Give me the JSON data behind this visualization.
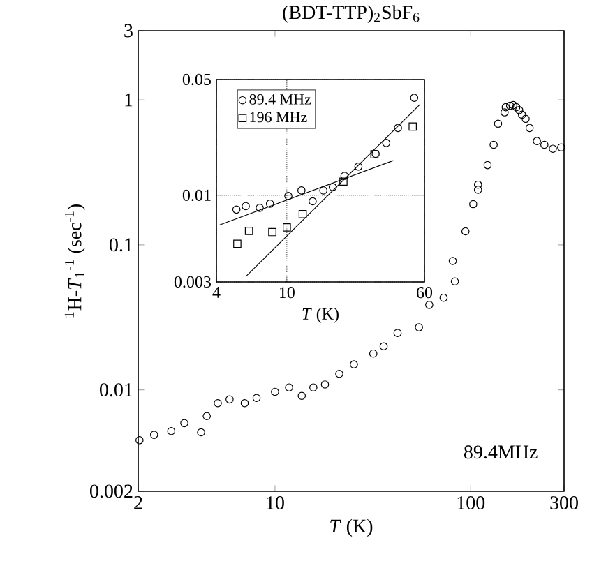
{
  "chart_data": [
    {
      "type": "scatter",
      "title": "(BDT-TTP)$_{2}$SbF$_{6}$",
      "xlabel": "*T* (K)",
      "ylabel": "$^{1}$H-*T*$_{1}$$^{-1}$ (sec$^{-1}$)",
      "log": "xy",
      "marker": "circle",
      "xlim": [
        2,
        300
      ],
      "ylim": [
        0.002,
        3
      ],
      "xticks": [
        2,
        10,
        100,
        300
      ],
      "yticks": [
        0.002,
        0.01,
        0.1,
        1,
        3
      ],
      "annotations": [
        "89.4MHz"
      ],
      "series": [
        {
          "color": "#000000",
          "x": [
            2.03,
            2.41,
            2.95,
            3.44,
            4.19,
            4.48,
            5.1,
            5.86,
            7.0,
            8.05,
            10,
            11.8,
            13.7,
            15.7,
            18,
            21.3,
            25.3,
            31.8,
            35.9,
            42.3,
            54.4,
            61.4,
            72.7,
            83,
            81,
            94,
            103,
            109,
            109,
            122,
            131,
            138,
            149,
            151,
            159,
            165,
            171,
            177,
            183,
            191,
            200,
            218,
            238,
            263,
            290
          ],
          "values": [
            0.0045,
            0.0049,
            0.0052,
            0.0059,
            0.0051,
            0.0066,
            0.0081,
            0.0086,
            0.0081,
            0.0088,
            0.0097,
            0.0104,
            0.0091,
            0.0104,
            0.0109,
            0.0129,
            0.015,
            0.0178,
            0.02,
            0.0247,
            0.027,
            0.0386,
            0.0432,
            0.056,
            0.0775,
            0.124,
            0.191,
            0.24,
            0.26,
            0.355,
            0.49,
            0.685,
            0.82,
            0.89,
            0.91,
            0.92,
            0.89,
            0.85,
            0.79,
            0.74,
            0.64,
            0.52,
            0.49,
            0.46,
            0.47
          ]
        }
      ]
    },
    {
      "type": "scatter",
      "xlabel": "*T* (K)",
      "log": "xy",
      "grid": true,
      "legend": "top left",
      "xlim": [
        4,
        60
      ],
      "ylim": [
        0.003,
        0.05
      ],
      "xticks": [
        4,
        10,
        60
      ],
      "yticks": [
        0.003,
        0.01,
        0.05
      ],
      "series": [
        {
          "name": "89.4 MHz",
          "color": "#000000",
          "marker": "circle",
          "x": [
            5.19,
            5.86,
            7.03,
            8.03,
            10.2,
            12.1,
            14.0,
            16.1,
            18.2,
            21.2,
            25.4,
            31.8,
            36.5,
            42.5,
            52.5
          ],
          "values": [
            0.0082,
            0.0086,
            0.0084,
            0.0089,
            0.0099,
            0.0107,
            0.0092,
            0.0107,
            0.0112,
            0.0131,
            0.0149,
            0.0178,
            0.0207,
            0.0255,
            0.0388
          ]
        },
        {
          "name": "196 MHz",
          "color": "#000000",
          "marker": "square",
          "x": [
            5.25,
            6.11,
            8.28,
            10,
            12.3,
            20.9,
            31.3,
            51.5
          ],
          "values": [
            0.0051,
            0.0061,
            0.006,
            0.0064,
            0.0077,
            0.0121,
            0.0177,
            0.026
          ]
        },
        {
          "type": "line",
          "color": "#000000",
          "x": [
            4.13,
            40
          ],
          "values": [
            0.0066,
            0.0162
          ]
        },
        {
          "type": "line",
          "color": "#000000",
          "x": [
            5.86,
            56.5
          ],
          "values": [
            0.00323,
            0.0353
          ]
        }
      ]
    }
  ]
}
